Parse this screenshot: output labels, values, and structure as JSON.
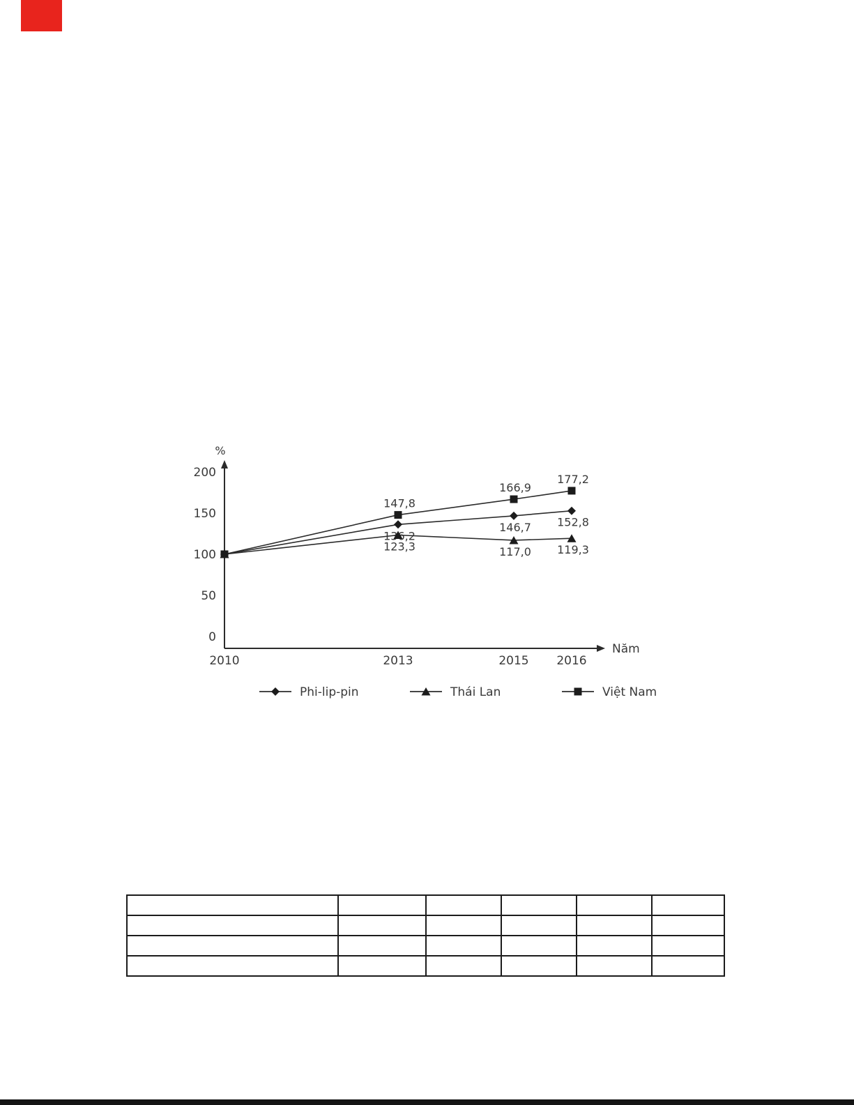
{
  "page": {
    "background": "#ffffff",
    "decorations": {
      "red_block": {
        "color": "#e8241d"
      },
      "bottom_bar": {
        "color": "#141414"
      }
    }
  },
  "chart_data": {
    "type": "line",
    "title": "",
    "xlabel": "Năm",
    "ylabel": "%",
    "x": [
      2010,
      2013,
      2015,
      2016
    ],
    "x_tick_labels": [
      "2010",
      "2013",
      "2015",
      "2016"
    ],
    "ylim": [
      0,
      200
    ],
    "yticks": [
      0,
      50,
      100,
      150,
      200
    ],
    "grid": false,
    "legend_position": "bottom",
    "line_color": "#2b2b2b",
    "marker_color": "#1c1c1c",
    "series": [
      {
        "name": "Phi-lip-pin",
        "marker": "diamond",
        "values": [
          100,
          136.2,
          146.7,
          152.8
        ],
        "point_labels": [
          "",
          "136,2",
          "146,7",
          "152,8"
        ],
        "label_side": "below"
      },
      {
        "name": "Thái Lan",
        "marker": "triangle",
        "values": [
          100,
          123.3,
          117.0,
          119.3
        ],
        "point_labels": [
          "",
          "123,3",
          "117,0",
          "119,3"
        ],
        "label_side": "below"
      },
      {
        "name": "Việt Nam",
        "marker": "square",
        "values": [
          100,
          147.8,
          166.9,
          177.2
        ],
        "point_labels": [
          "",
          "147,8",
          "166,9",
          "177,2"
        ],
        "label_side": "above"
      }
    ]
  },
  "table": {
    "rows": [
      [
        "",
        "",
        "",
        "",
        "",
        ""
      ],
      [
        "",
        "",
        "",
        "",
        "",
        ""
      ],
      [
        "",
        "",
        "",
        "",
        "",
        ""
      ],
      [
        "",
        "",
        "",
        "",
        "",
        ""
      ]
    ]
  }
}
